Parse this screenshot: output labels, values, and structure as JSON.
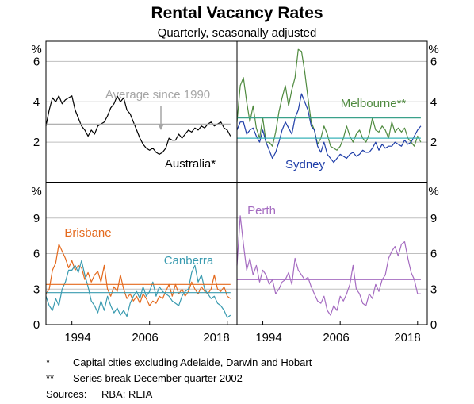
{
  "title": "Rental Vacancy Rates",
  "subtitle": "Quarterly, seasonally adjusted",
  "chart_data": [
    {
      "type": "line",
      "panel": "top-left",
      "y_unit": "%",
      "ylim": [
        0,
        7
      ],
      "yticks": [
        2,
        4,
        6
      ],
      "xlim": [
        1990,
        2019.5
      ],
      "grid": true,
      "annotation": "Average since 1990",
      "series": [
        {
          "name": "Australia*",
          "color": "#000000",
          "x": [
            1990,
            1990.5,
            1991,
            1991.5,
            1992,
            1992.5,
            1993,
            1993.5,
            1994,
            1994.5,
            1995,
            1995.5,
            1996,
            1996.5,
            1997,
            1997.5,
            1998,
            1998.5,
            1999,
            1999.5,
            2000,
            2000.5,
            2001,
            2001.5,
            2002,
            2002.5,
            2003,
            2003.5,
            2004,
            2004.5,
            2005,
            2005.5,
            2006,
            2006.5,
            2007,
            2007.5,
            2008,
            2008.5,
            2009,
            2009.5,
            2010,
            2010.5,
            2011,
            2011.5,
            2012,
            2012.5,
            2013,
            2013.5,
            2014,
            2014.5,
            2015,
            2015.5,
            2016,
            2016.5,
            2017,
            2017.5,
            2018,
            2018.5
          ],
          "values": [
            2.8,
            3.6,
            4.2,
            4.0,
            4.3,
            3.9,
            4.1,
            4.2,
            4.3,
            3.6,
            3.2,
            2.8,
            2.6,
            2.3,
            2.6,
            2.4,
            2.8,
            2.9,
            3.0,
            3.3,
            3.7,
            3.9,
            4.3,
            4.0,
            4.2,
            3.6,
            3.4,
            3.0,
            2.6,
            2.2,
            1.9,
            1.7,
            1.6,
            1.7,
            1.5,
            1.4,
            1.5,
            1.7,
            2.2,
            2.1,
            2.1,
            2.4,
            2.2,
            2.4,
            2.6,
            2.5,
            2.7,
            2.6,
            2.8,
            2.7,
            2.9,
            3.0,
            2.8,
            2.9,
            3.0,
            2.7,
            2.6,
            2.3
          ]
        },
        {
          "name": "Average since 1990",
          "color": "#a6a6a6",
          "x": [
            1990,
            2018.5
          ],
          "values": [
            2.9,
            2.9
          ]
        }
      ]
    },
    {
      "type": "line",
      "panel": "top-right",
      "y_unit": "%",
      "ylim": [
        0,
        7
      ],
      "yticks": [
        2,
        4,
        6
      ],
      "xlim": [
        1990,
        2019.5
      ],
      "grid": true,
      "series": [
        {
          "name": "Melbourne**",
          "color": "#4f8a3f",
          "x": [
            1990,
            1990.5,
            1991,
            1991.5,
            1992,
            1992.5,
            1993,
            1993.5,
            1994,
            1994.5,
            1995,
            1995.5,
            1996,
            1996.5,
            1997,
            1997.5,
            1998,
            1998.5,
            1999,
            1999.5,
            2000,
            2000.5,
            2001,
            2001.5,
            2002,
            2002.5,
            2003,
            2003.5,
            2004,
            2004.5,
            2005,
            2005.5,
            2006,
            2006.5,
            2007,
            2007.5,
            2008,
            2008.5,
            2009,
            2009.5,
            2010,
            2010.5,
            2011,
            2011.5,
            2012,
            2012.5,
            2013,
            2013.5,
            2014,
            2014.5,
            2015,
            2015.5,
            2016,
            2016.5,
            2017,
            2017.5,
            2018,
            2018.5
          ],
          "values": [
            3.0,
            4.8,
            5.2,
            4.0,
            3.0,
            3.8,
            2.7,
            2.2,
            3.2,
            2.0,
            2.0,
            1.8,
            2.5,
            3.5,
            4.2,
            4.8,
            3.8,
            4.6,
            5.2,
            6.6,
            6.5,
            5.5,
            4.2,
            3.0,
            2.6,
            1.9,
            2.2,
            2.8,
            2.4,
            1.8,
            1.7,
            1.6,
            1.8,
            2.2,
            2.8,
            2.3,
            2.0,
            2.4,
            2.6,
            2.2,
            2.0,
            2.4,
            3.2,
            2.6,
            2.5,
            2.8,
            2.6,
            2.2,
            3.0,
            2.5,
            2.7,
            2.5,
            2.7,
            2.2,
            2.0,
            1.8,
            2.3,
            2.0
          ]
        },
        {
          "name": "Sydney",
          "color": "#1f3ea8",
          "x": [
            1990,
            1990.5,
            1991,
            1991.5,
            1992,
            1992.5,
            1993,
            1993.5,
            1994,
            1994.5,
            1995,
            1995.5,
            1996,
            1996.5,
            1997,
            1997.5,
            1998,
            1998.5,
            1999,
            1999.5,
            2000,
            2000.5,
            2001,
            2001.5,
            2002,
            2002.5,
            2003,
            2003.5,
            2004,
            2004.5,
            2005,
            2005.5,
            2006,
            2006.5,
            2007,
            2007.5,
            2008,
            2008.5,
            2009,
            2009.5,
            2010,
            2010.5,
            2011,
            2011.5,
            2012,
            2012.5,
            2013,
            2013.5,
            2014,
            2014.5,
            2015,
            2015.5,
            2016,
            2016.5,
            2017,
            2017.5,
            2018,
            2018.5
          ],
          "values": [
            2.6,
            3.0,
            3.0,
            2.4,
            2.6,
            2.7,
            2.3,
            2.0,
            2.6,
            2.0,
            1.6,
            1.2,
            1.5,
            2.0,
            2.6,
            3.0,
            2.7,
            2.4,
            3.2,
            3.6,
            4.4,
            4.0,
            3.6,
            2.8,
            2.6,
            1.8,
            1.5,
            2.0,
            1.4,
            1.2,
            1.0,
            1.2,
            1.4,
            1.3,
            1.2,
            1.4,
            1.5,
            1.3,
            1.4,
            1.6,
            1.5,
            1.5,
            1.7,
            2.0,
            1.6,
            1.9,
            1.7,
            1.8,
            1.8,
            2.0,
            1.9,
            1.8,
            2.1,
            1.9,
            2.0,
            2.3,
            2.6,
            2.8
          ]
        },
        {
          "name": "Melbourne average",
          "color": "#3aa18a",
          "x": [
            1990,
            2018.5
          ],
          "values": [
            3.2,
            3.2
          ]
        },
        {
          "name": "Sydney average",
          "color": "#3ab3b8",
          "x": [
            1990,
            2018.5
          ],
          "values": [
            2.2,
            2.2
          ]
        }
      ]
    },
    {
      "type": "line",
      "panel": "bottom-left",
      "y_unit": "%",
      "ylim": [
        0,
        12
      ],
      "yticks": [
        0,
        3,
        6,
        9
      ],
      "xlim": [
        1990,
        2019.5
      ],
      "xticks": [
        1994,
        2006,
        2018
      ],
      "grid": true,
      "series": [
        {
          "name": "Brisbane",
          "color": "#e46a1e",
          "x": [
            1990,
            1990.5,
            1991,
            1991.5,
            1992,
            1992.5,
            1993,
            1993.5,
            1994,
            1994.5,
            1995,
            1995.5,
            1996,
            1996.5,
            1997,
            1997.5,
            1998,
            1998.5,
            1999,
            1999.5,
            2000,
            2000.5,
            2001,
            2001.5,
            2002,
            2002.5,
            2003,
            2003.5,
            2004,
            2004.5,
            2005,
            2005.5,
            2006,
            2006.5,
            2007,
            2007.5,
            2008,
            2008.5,
            2009,
            2009.5,
            2010,
            2010.5,
            2011,
            2011.5,
            2012,
            2012.5,
            2013,
            2013.5,
            2014,
            2014.5,
            2015,
            2015.5,
            2016,
            2016.5,
            2017,
            2017.5,
            2018,
            2018.5
          ],
          "values": [
            2.6,
            3.0,
            4.6,
            5.2,
            6.8,
            6.2,
            5.6,
            4.8,
            5.4,
            4.6,
            5.0,
            4.8,
            3.8,
            4.4,
            3.6,
            4.2,
            4.5,
            3.6,
            5.0,
            3.0,
            2.4,
            3.2,
            2.8,
            4.2,
            3.0,
            2.2,
            2.6,
            2.0,
            2.4,
            1.8,
            2.6,
            2.2,
            1.6,
            2.0,
            1.8,
            2.4,
            2.2,
            2.8,
            3.4,
            2.4,
            3.4,
            2.6,
            3.0,
            2.4,
            2.8,
            3.6,
            3.0,
            2.6,
            3.2,
            2.8,
            2.6,
            3.0,
            4.2,
            3.0,
            2.8,
            3.2,
            2.4,
            2.2
          ]
        },
        {
          "name": "Canberra",
          "color": "#3a9bb0",
          "x": [
            1990,
            1990.5,
            1991,
            1991.5,
            1992,
            1992.5,
            1993,
            1993.5,
            1994,
            1994.5,
            1995,
            1995.5,
            1996,
            1996.5,
            1997,
            1997.5,
            1998,
            1998.5,
            1999,
            1999.5,
            2000,
            2000.5,
            2001,
            2001.5,
            2002,
            2002.5,
            2003,
            2003.5,
            2004,
            2004.5,
            2005,
            2005.5,
            2006,
            2006.5,
            2007,
            2007.5,
            2008,
            2008.5,
            2009,
            2009.5,
            2010,
            2010.5,
            2011,
            2011.5,
            2012,
            2012.5,
            2013,
            2013.5,
            2014,
            2014.5,
            2015,
            2015.5,
            2016,
            2016.5,
            2017,
            2017.5,
            2018,
            2018.5
          ],
          "values": [
            2.4,
            1.6,
            1.2,
            2.2,
            1.6,
            3.0,
            3.6,
            4.6,
            4.6,
            5.0,
            4.4,
            5.4,
            4.2,
            3.2,
            2.0,
            1.6,
            1.0,
            2.0,
            1.2,
            2.4,
            1.6,
            1.0,
            1.4,
            0.8,
            1.2,
            0.7,
            1.8,
            2.4,
            2.8,
            2.2,
            3.2,
            2.4,
            2.8,
            3.6,
            2.4,
            3.2,
            2.8,
            2.6,
            2.4,
            2.0,
            1.8,
            1.6,
            2.4,
            2.8,
            3.0,
            4.4,
            5.0,
            3.6,
            4.2,
            3.0,
            2.6,
            2.2,
            2.4,
            1.8,
            1.6,
            1.2,
            0.6,
            0.8
          ]
        },
        {
          "name": "Brisbane average",
          "color": "#e46a1e",
          "x": [
            1990,
            2018.5
          ],
          "values": [
            3.4,
            3.4
          ]
        },
        {
          "name": "Canberra average",
          "color": "#3a9bb0",
          "x": [
            1990,
            2018.5
          ],
          "values": [
            2.7,
            2.7
          ]
        }
      ]
    },
    {
      "type": "line",
      "panel": "bottom-right",
      "y_unit": "%",
      "ylim": [
        0,
        12
      ],
      "yticks": [
        0,
        3,
        6,
        9
      ],
      "xlim": [
        1990,
        2019.5
      ],
      "xticks": [
        1994,
        2006,
        2018
      ],
      "grid": true,
      "series": [
        {
          "name": "Perth",
          "color": "#a56cc1",
          "x": [
            1990,
            1990.5,
            1991,
            1991.5,
            1992,
            1992.5,
            1993,
            1993.5,
            1994,
            1994.5,
            1995,
            1995.5,
            1996,
            1996.5,
            1997,
            1997.5,
            1998,
            1998.5,
            1999,
            1999.5,
            2000,
            2000.5,
            2001,
            2001.5,
            2002,
            2002.5,
            2003,
            2003.5,
            2004,
            2004.5,
            2005,
            2005.5,
            2006,
            2006.5,
            2007,
            2007.5,
            2008,
            2008.5,
            2009,
            2009.5,
            2010,
            2010.5,
            2011,
            2011.5,
            2012,
            2012.5,
            2013,
            2013.5,
            2014,
            2014.5,
            2015,
            2015.5,
            2016,
            2016.5,
            2017,
            2017.5,
            2018,
            2018.5
          ],
          "values": [
            5.0,
            9.2,
            6.8,
            4.6,
            5.6,
            4.2,
            5.0,
            3.6,
            4.6,
            4.2,
            3.4,
            3.8,
            2.6,
            3.0,
            3.6,
            3.8,
            4.4,
            3.4,
            5.6,
            4.6,
            4.2,
            3.8,
            4.0,
            3.2,
            2.6,
            2.0,
            1.8,
            2.4,
            1.2,
            0.8,
            1.6,
            1.2,
            2.4,
            2.0,
            2.6,
            3.4,
            5.0,
            3.0,
            2.6,
            1.8,
            1.6,
            2.6,
            2.2,
            3.4,
            2.8,
            3.8,
            4.2,
            5.6,
            6.2,
            6.6,
            5.8,
            6.8,
            7.0,
            5.6,
            4.4,
            3.8,
            2.6,
            2.6
          ]
        },
        {
          "name": "Perth average",
          "color": "#a56cc1",
          "x": [
            1990,
            2018.5
          ],
          "values": [
            3.8,
            3.8
          ]
        }
      ]
    }
  ],
  "labels": {
    "tl_unit_left": "%",
    "tr_unit_right": "%",
    "bl_unit_left": "%",
    "br_unit_right": "%",
    "australia": "Australia*",
    "average": "Average since 1990",
    "melbourne": "Melbourne**",
    "sydney": "Sydney",
    "brisbane": "Brisbane",
    "canberra": "Canberra",
    "perth": "Perth",
    "xtick_1994": "1994",
    "xtick_2006": "2006",
    "xtick_2018": "2018"
  },
  "notes": [
    {
      "symbol": "*",
      "text": "Capital cities excluding Adelaide, Darwin and Hobart"
    },
    {
      "symbol": "**",
      "text": "Series break December quarter 2002"
    }
  ],
  "sources": {
    "label": "Sources:",
    "text": "RBA; REIA"
  },
  "colors": {
    "australia": "#000000",
    "average": "#a6a6a6",
    "melbourne": "#4f8a3f",
    "sydney": "#1f3ea8",
    "brisbane": "#e46a1e",
    "canberra": "#3a9bb0",
    "perth": "#a56cc1",
    "grid": "#bfbfbf"
  }
}
